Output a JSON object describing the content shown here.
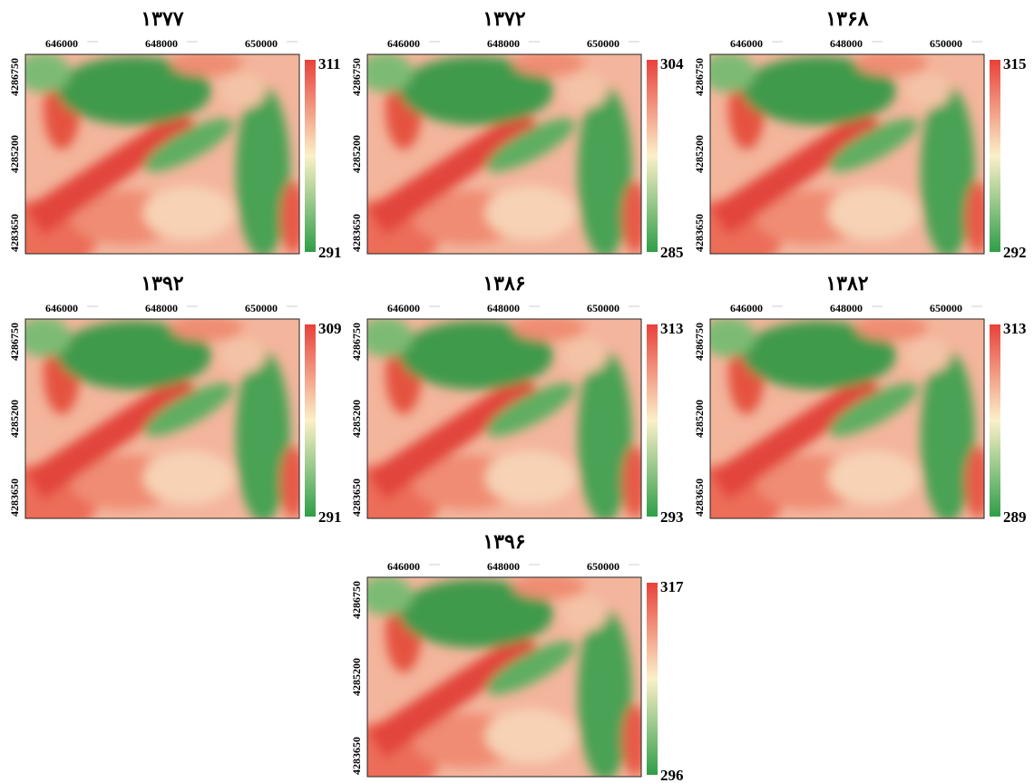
{
  "axes": {
    "x_ticks": [
      "646000",
      "648000",
      "650000"
    ],
    "y_ticks": [
      "4286750",
      "4285200",
      "4283650"
    ]
  },
  "panels": [
    {
      "title": "۱۳۷۷",
      "colorbar_max": 311,
      "colorbar_min": 291
    },
    {
      "title": "۱۳۷۲",
      "colorbar_max": 304,
      "colorbar_min": 285
    },
    {
      "title": "۱۳۶۸",
      "colorbar_max": 315,
      "colorbar_min": 292
    },
    {
      "title": "۱۳۹۲",
      "colorbar_max": 309,
      "colorbar_min": 291
    },
    {
      "title": "۱۳۸۶",
      "colorbar_max": 313,
      "colorbar_min": 293
    },
    {
      "title": "۱۳۸۲",
      "colorbar_max": 313,
      "colorbar_min": 289
    },
    {
      "title": "۱۳۹۶",
      "colorbar_max": 317,
      "colorbar_min": 296
    }
  ]
}
